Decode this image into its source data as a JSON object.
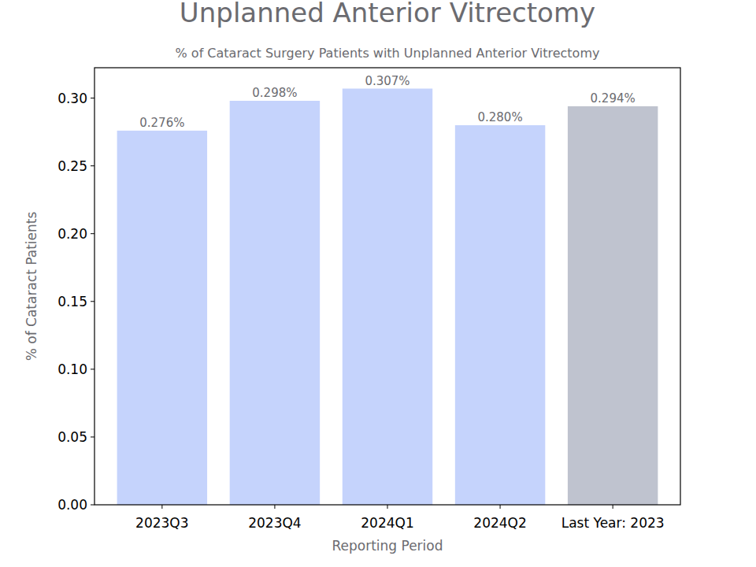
{
  "chart_data": {
    "type": "bar",
    "title": "Unplanned Anterior Vitrectomy",
    "subtitle": "% of Cataract Surgery Patients with Unplanned Anterior Vitrectomy",
    "x_label": "Reporting Period",
    "y_label": "% of Cataract Patients",
    "categories": [
      "2023Q3",
      "2023Q4",
      "2024Q1",
      "2024Q2",
      "Last Year: 2023"
    ],
    "values": [
      0.276,
      0.298,
      0.307,
      0.28,
      0.294
    ],
    "value_labels": [
      "0.276%",
      "0.298%",
      "0.307%",
      "0.280%",
      "0.294%"
    ],
    "colors": [
      "#c5d3fc",
      "#c5d3fc",
      "#c5d3fc",
      "#c5d3fc",
      "#bfc3cf"
    ],
    "ylim": [
      0,
      0.3224
    ],
    "yticks": [
      {
        "value": 0,
        "label": "0.00"
      },
      {
        "value": 0.05,
        "label": "0.05"
      },
      {
        "value": 0.1,
        "label": "0.10"
      },
      {
        "value": 0.15,
        "label": "0.15"
      },
      {
        "value": 0.2,
        "label": "0.20"
      },
      {
        "value": 0.25,
        "label": "0.25"
      },
      {
        "value": 0.3,
        "label": "0.30"
      }
    ],
    "grid": false,
    "data_labels": true
  }
}
